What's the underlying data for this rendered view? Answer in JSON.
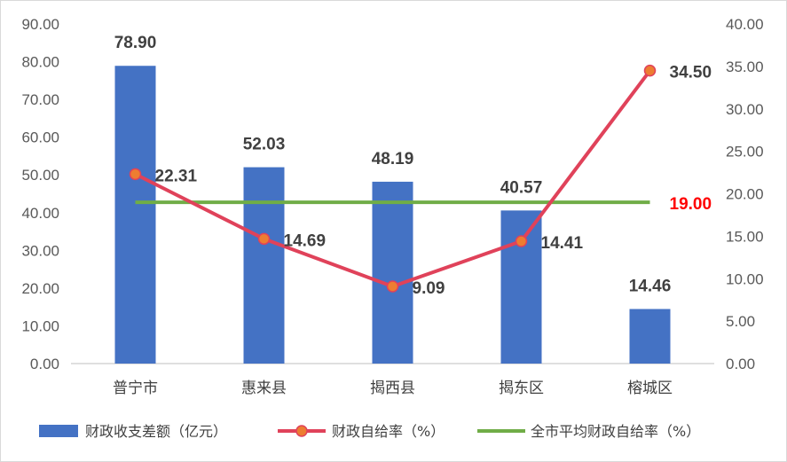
{
  "chart_data": {
    "type": "bar+line",
    "categories": [
      "普宁市",
      "惠来县",
      "揭西县",
      "揭东区",
      "榕城区"
    ],
    "left_axis": {
      "ticks": [
        "0.00",
        "10.00",
        "20.00",
        "30.00",
        "40.00",
        "50.00",
        "60.00",
        "70.00",
        "80.00",
        "90.00"
      ],
      "ylim": [
        0,
        90
      ]
    },
    "right_axis": {
      "ticks": [
        "0.00",
        "5.00",
        "10.00",
        "15.00",
        "20.00",
        "25.00",
        "30.00",
        "35.00",
        "40.00"
      ],
      "ylim": [
        0,
        40
      ]
    },
    "series": [
      {
        "name": "财政收支差额（亿元）",
        "type": "bar",
        "axis": "left",
        "color": "#4472C4",
        "values": [
          78.9,
          52.03,
          48.19,
          40.57,
          14.46
        ],
        "labels": [
          "78.90",
          "52.03",
          "48.19",
          "40.57",
          "14.46"
        ]
      },
      {
        "name": "财政自给率（%）",
        "type": "line",
        "axis": "right",
        "color": "#E0425A",
        "marker_color": "#ED7D31",
        "values": [
          22.31,
          14.69,
          9.09,
          14.41,
          34.5
        ],
        "labels": [
          "22.31",
          "14.69",
          "9.09",
          "14.41",
          "34.50"
        ]
      },
      {
        "name": "全市平均财政自给率（%）",
        "type": "line",
        "axis": "right",
        "color": "#70AD47",
        "values": [
          19.0,
          19.0,
          19.0,
          19.0,
          19.0
        ],
        "label": "19.00",
        "label_color": "#FF0000"
      }
    ],
    "grid": false,
    "legend_position": "bottom"
  }
}
